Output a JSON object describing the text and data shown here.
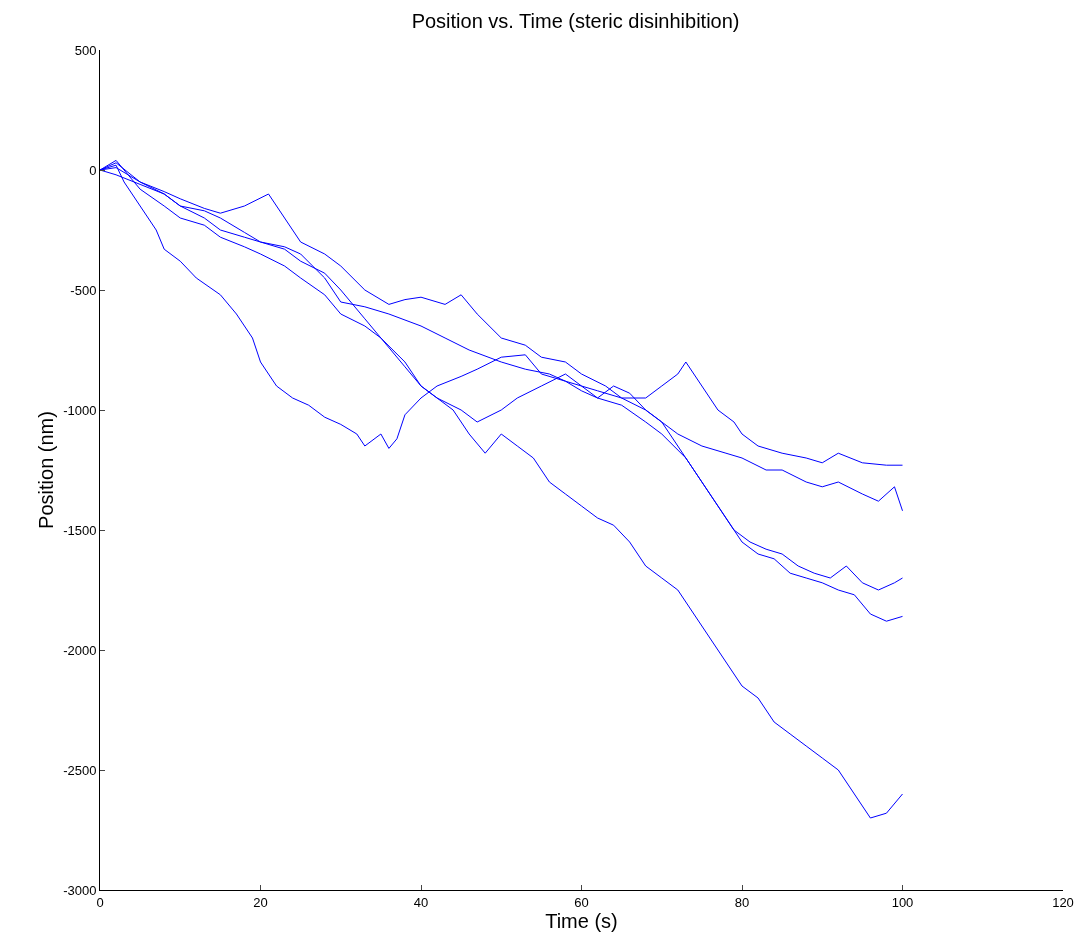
{
  "chart_data": {
    "type": "line",
    "title": "Position vs. Time (steric disinhibition)",
    "xlabel": "Time (s)",
    "ylabel": "Position (nm)",
    "xlim": [
      0,
      120
    ],
    "xticks": [
      0,
      20,
      40,
      60,
      80,
      100,
      120
    ],
    "ylim": [
      -3000,
      500
    ],
    "yticks": [
      -3000,
      -2500,
      -2000,
      -1500,
      -1000,
      -500,
      0,
      500
    ],
    "marker": "none",
    "line_style": "solid",
    "series": [
      {
        "color": "#0000ff",
        "x": [
          0,
          2,
          3,
          5,
          7,
          8,
          10,
          12,
          15,
          17,
          19,
          20,
          22,
          24,
          26,
          28,
          30,
          32,
          33,
          35,
          36,
          37,
          38,
          40,
          42,
          45,
          47,
          50,
          53,
          55,
          58,
          60,
          62,
          65,
          68,
          70,
          72,
          73,
          75,
          77,
          79,
          80,
          82,
          85,
          88,
          90,
          92,
          95,
          98,
          100
        ],
        "values": [
          0,
          20,
          -50,
          -150,
          -250,
          -330,
          -380,
          -450,
          -520,
          -600,
          -700,
          -800,
          -900,
          -950,
          -980,
          -1030,
          -1060,
          -1100,
          -1150,
          -1100,
          -1160,
          -1120,
          -1020,
          -950,
          -900,
          -860,
          -830,
          -780,
          -770,
          -850,
          -880,
          -900,
          -920,
          -950,
          -950,
          -900,
          -850,
          -800,
          -900,
          -1000,
          -1050,
          -1100,
          -1150,
          -1180,
          -1200,
          -1220,
          -1180,
          -1220,
          -1230,
          -1230
        ]
      },
      {
        "color": "#0000ff",
        "x": [
          0,
          2,
          5,
          8,
          10,
          13,
          15,
          18,
          20,
          23,
          25,
          28,
          30,
          33,
          35,
          38,
          40,
          42,
          44,
          46,
          48,
          50,
          52,
          54,
          56,
          58,
          60,
          62,
          64,
          66,
          68,
          70,
          72,
          74,
          76,
          78,
          80,
          82,
          84,
          86,
          88,
          90,
          92,
          94,
          96,
          98,
          100
        ],
        "values": [
          0,
          30,
          -50,
          -100,
          -150,
          -170,
          -200,
          -260,
          -300,
          -330,
          -380,
          -430,
          -500,
          -620,
          -700,
          -820,
          -900,
          -950,
          -1000,
          -1100,
          -1180,
          -1100,
          -1150,
          -1200,
          -1300,
          -1350,
          -1400,
          -1450,
          -1480,
          -1550,
          -1650,
          -1700,
          -1750,
          -1850,
          -1950,
          -2050,
          -2150,
          -2200,
          -2300,
          -2350,
          -2400,
          -2450,
          -2500,
          -2600,
          -2700,
          -2680,
          -2600
        ]
      },
      {
        "color": "#0000ff",
        "x": [
          0,
          2,
          5,
          8,
          10,
          13,
          15,
          18,
          21,
          23,
          25,
          28,
          30,
          33,
          36,
          38,
          40,
          43,
          45,
          47,
          50,
          53,
          55,
          58,
          60,
          63,
          65,
          68,
          70,
          72,
          75,
          78,
          80,
          83,
          85,
          88,
          90,
          92,
          95,
          97,
          99,
          100
        ],
        "values": [
          0,
          10,
          -50,
          -90,
          -120,
          -160,
          -180,
          -150,
          -100,
          -200,
          -300,
          -350,
          -400,
          -500,
          -560,
          -540,
          -530,
          -560,
          -520,
          -600,
          -700,
          -730,
          -780,
          -800,
          -850,
          -900,
          -950,
          -1000,
          -1050,
          -1100,
          -1150,
          -1180,
          -1200,
          -1250,
          -1250,
          -1300,
          -1320,
          -1300,
          -1350,
          -1380,
          -1320,
          -1420
        ]
      },
      {
        "color": "#0000ff",
        "x": [
          0,
          2,
          5,
          8,
          10,
          13,
          15,
          18,
          20,
          23,
          25,
          28,
          30,
          33,
          35,
          38,
          40,
          42,
          45,
          47,
          50,
          52,
          55,
          58,
          60,
          62,
          65,
          68,
          70,
          73,
          75,
          77,
          79,
          81,
          83,
          85,
          87,
          89,
          91,
          93,
          95,
          97,
          99,
          100
        ],
        "values": [
          0,
          40,
          -80,
          -150,
          -200,
          -230,
          -280,
          -320,
          -350,
          -400,
          -450,
          -520,
          -600,
          -650,
          -700,
          -800,
          -900,
          -950,
          -1000,
          -1050,
          -1000,
          -950,
          -900,
          -850,
          -900,
          -950,
          -980,
          -1050,
          -1100,
          -1200,
          -1300,
          -1400,
          -1500,
          -1550,
          -1580,
          -1600,
          -1650,
          -1680,
          -1700,
          -1650,
          -1720,
          -1750,
          -1720,
          -1700
        ]
      },
      {
        "color": "#0000ff",
        "x": [
          0,
          2,
          5,
          8,
          10,
          13,
          15,
          18,
          20,
          23,
          25,
          28,
          30,
          33,
          36,
          40,
          43,
          46,
          50,
          53,
          56,
          58,
          60,
          62,
          64,
          66,
          68,
          70,
          72,
          74,
          76,
          78,
          80,
          82,
          84,
          86,
          88,
          90,
          92,
          94,
          96,
          98,
          100
        ],
        "values": [
          0,
          -20,
          -60,
          -100,
          -150,
          -200,
          -250,
          -280,
          -300,
          -320,
          -350,
          -450,
          -550,
          -570,
          -600,
          -650,
          -700,
          -750,
          -800,
          -830,
          -850,
          -880,
          -920,
          -950,
          -900,
          -930,
          -1000,
          -1050,
          -1150,
          -1250,
          -1350,
          -1450,
          -1550,
          -1600,
          -1620,
          -1680,
          -1700,
          -1720,
          -1750,
          -1770,
          -1850,
          -1880,
          -1860
        ]
      }
    ]
  }
}
